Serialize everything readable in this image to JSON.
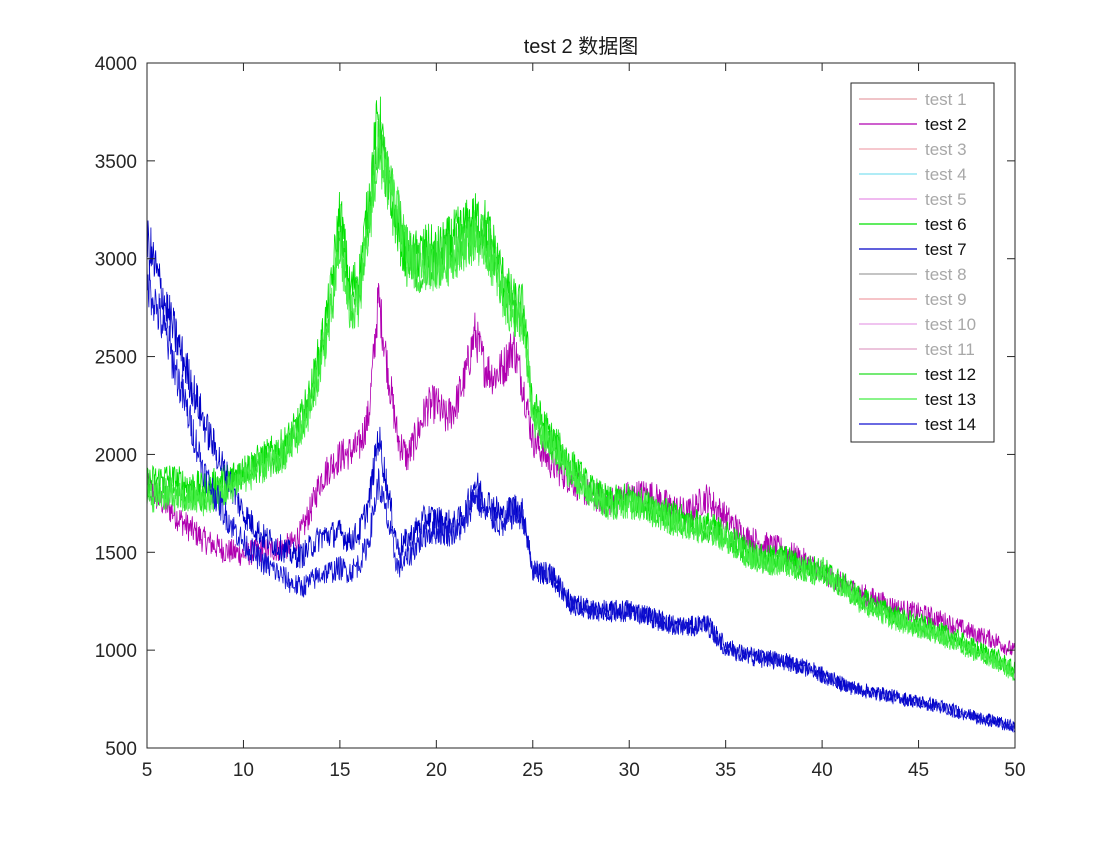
{
  "chart_data": {
    "type": "line",
    "title": "test 2 数据图",
    "xlabel": "",
    "ylabel": "",
    "xlim": [
      5,
      50
    ],
    "ylim": [
      500,
      4000
    ],
    "x_ticks": [
      5,
      10,
      15,
      20,
      25,
      30,
      35,
      40,
      45,
      50
    ],
    "y_ticks": [
      500,
      1000,
      1500,
      2000,
      2500,
      3000,
      3500,
      4000
    ],
    "grid": false,
    "legend_position": "top-right",
    "series": [
      {
        "name": "test 1",
        "color": "#e8a0a8",
        "active": false,
        "x": [],
        "y": []
      },
      {
        "name": "test 2",
        "color": "#b000b0",
        "active": true,
        "x": [
          5,
          6,
          7,
          8,
          9,
          10,
          11,
          12,
          12.5,
          13,
          13.5,
          14,
          14.5,
          15,
          15.5,
          16,
          16.5,
          17,
          17.5,
          18,
          18.5,
          19,
          19.5,
          20,
          20.5,
          21,
          21.5,
          22,
          22.5,
          23,
          23.5,
          24,
          24.5,
          25,
          26,
          27,
          28,
          29,
          30,
          31,
          32,
          33,
          34,
          35,
          36,
          37,
          38,
          39,
          40,
          41,
          42,
          43,
          44,
          45,
          46,
          47,
          48,
          49,
          50
        ],
        "y": [
          1830,
          1740,
          1640,
          1560,
          1510,
          1490,
          1510,
          1520,
          1540,
          1600,
          1720,
          1870,
          1940,
          1990,
          2010,
          2040,
          2200,
          2800,
          2420,
          2080,
          1980,
          2100,
          2240,
          2260,
          2180,
          2250,
          2400,
          2620,
          2450,
          2400,
          2450,
          2560,
          2350,
          2080,
          1950,
          1870,
          1790,
          1760,
          1790,
          1800,
          1740,
          1700,
          1780,
          1680,
          1580,
          1540,
          1510,
          1460,
          1400,
          1340,
          1290,
          1250,
          1210,
          1190,
          1160,
          1120,
          1080,
          1050,
          990
        ]
      },
      {
        "name": "test 3",
        "color": "#f0a8b0",
        "active": false,
        "x": [],
        "y": []
      },
      {
        "name": "test 4",
        "color": "#80e0f0",
        "active": false,
        "x": [],
        "y": []
      },
      {
        "name": "test 5",
        "color": "#e890e8",
        "active": false,
        "x": [],
        "y": []
      },
      {
        "name": "test 6",
        "color": "#00e000",
        "active": true,
        "x": [
          5,
          6,
          7,
          8,
          9,
          10,
          11,
          12,
          12.5,
          13,
          13.5,
          14,
          14.5,
          15,
          15.5,
          16,
          16.5,
          17,
          17.5,
          18,
          18.5,
          19,
          19.5,
          20,
          20.5,
          21,
          21.5,
          22,
          22.5,
          23,
          23.5,
          24,
          24.5,
          25,
          26,
          27,
          28,
          29,
          30,
          31,
          32,
          33,
          34,
          35,
          36,
          37,
          38,
          39,
          40,
          41,
          42,
          43,
          44,
          45,
          46,
          47,
          48,
          49,
          50
        ],
        "y": [
          1860,
          1880,
          1850,
          1830,
          1870,
          1920,
          1980,
          2040,
          2100,
          2180,
          2320,
          2550,
          2800,
          3250,
          2850,
          2900,
          3300,
          3750,
          3350,
          3150,
          2980,
          3020,
          3050,
          3030,
          3070,
          3120,
          3160,
          3200,
          3180,
          3050,
          2880,
          2780,
          2750,
          2250,
          2080,
          1950,
          1820,
          1760,
          1780,
          1740,
          1700,
          1660,
          1640,
          1600,
          1520,
          1470,
          1480,
          1430,
          1420,
          1350,
          1270,
          1220,
          1170,
          1140,
          1100,
          1060,
          1010,
          970,
          900
        ]
      },
      {
        "name": "test 7",
        "color": "#0000c8",
        "active": true,
        "x": [
          5,
          6,
          7,
          8,
          9,
          10,
          11,
          12,
          12.5,
          13,
          13.5,
          14,
          14.5,
          15,
          15.5,
          16,
          16.5,
          17,
          17.5,
          18,
          18.5,
          19,
          19.5,
          20,
          20.5,
          21,
          21.5,
          22,
          22.5,
          23,
          23.5,
          24,
          24.5,
          25,
          26,
          27,
          28,
          29,
          30,
          31,
          32,
          33,
          34,
          35,
          36,
          37,
          38,
          39,
          40,
          41,
          42,
          43,
          44,
          45,
          46,
          47,
          48,
          49,
          50
        ],
        "y": [
          3100,
          2750,
          2450,
          2150,
          1920,
          1700,
          1580,
          1520,
          1490,
          1480,
          1530,
          1580,
          1590,
          1600,
          1560,
          1600,
          1750,
          2100,
          1800,
          1520,
          1560,
          1620,
          1680,
          1670,
          1650,
          1640,
          1700,
          1860,
          1770,
          1730,
          1680,
          1740,
          1700,
          1410,
          1380,
          1240,
          1210,
          1200,
          1210,
          1180,
          1140,
          1120,
          1140,
          1020,
          980,
          960,
          950,
          920,
          880,
          830,
          800,
          780,
          760,
          740,
          720,
          690,
          660,
          640,
          610
        ]
      },
      {
        "name": "test 8",
        "color": "#a0a0a0",
        "active": false,
        "x": [],
        "y": []
      },
      {
        "name": "test 9",
        "color": "#f0a0a8",
        "active": false,
        "x": [],
        "y": []
      },
      {
        "name": "test 10",
        "color": "#e8a0e8",
        "active": false,
        "x": [],
        "y": []
      },
      {
        "name": "test 11",
        "color": "#e0a0c8",
        "active": false,
        "x": [],
        "y": []
      },
      {
        "name": "test 12",
        "color": "#22dd22",
        "active": true,
        "x": [
          5,
          6,
          7,
          8,
          9,
          10,
          11,
          12,
          12.5,
          13,
          13.5,
          14,
          14.5,
          15,
          15.5,
          16,
          16.5,
          17,
          17.5,
          18,
          18.5,
          19,
          19.5,
          20,
          20.5,
          21,
          21.5,
          22,
          22.5,
          23,
          23.5,
          24,
          24.5,
          25,
          26,
          27,
          28,
          29,
          30,
          31,
          32,
          33,
          34,
          35,
          36,
          37,
          38,
          39,
          40,
          41,
          42,
          43,
          44,
          45,
          46,
          47,
          48,
          49,
          50
        ],
        "y": [
          1800,
          1810,
          1790,
          1780,
          1820,
          1900,
          1950,
          2000,
          2060,
          2140,
          2270,
          2480,
          2700,
          3100,
          2750,
          2800,
          3200,
          3600,
          3400,
          3250,
          3050,
          2950,
          2980,
          2990,
          3000,
          3050,
          3100,
          3130,
          3100,
          2980,
          2820,
          2720,
          2700,
          2200,
          2050,
          1920,
          1800,
          1740,
          1760,
          1720,
          1680,
          1640,
          1620,
          1580,
          1500,
          1450,
          1460,
          1410,
          1400,
          1330,
          1250,
          1200,
          1150,
          1120,
          1080,
          1040,
          990,
          950,
          880
        ]
      },
      {
        "name": "test 13",
        "color": "#44ee44",
        "active": true,
        "x": [
          5,
          6,
          7,
          8,
          9,
          10,
          11,
          12,
          12.5,
          13,
          13.5,
          14,
          14.5,
          15,
          15.5,
          16,
          16.5,
          17,
          17.5,
          18,
          18.5,
          19,
          19.5,
          20,
          20.5,
          21,
          21.5,
          22,
          22.5,
          23,
          23.5,
          24,
          24.5,
          25,
          26,
          27,
          28,
          29,
          30,
          31,
          32,
          33,
          34,
          35,
          36,
          37,
          38,
          39,
          40,
          41,
          42,
          43,
          44,
          45,
          46,
          47,
          48,
          49,
          50
        ],
        "y": [
          1780,
          1790,
          1770,
          1760,
          1800,
          1880,
          1930,
          1990,
          2050,
          2120,
          2250,
          2460,
          2680,
          3050,
          2730,
          2780,
          3150,
          3550,
          3380,
          3230,
          3030,
          2940,
          2960,
          2970,
          2980,
          3030,
          3080,
          3110,
          3080,
          2960,
          2800,
          2700,
          2680,
          2180,
          2030,
          1900,
          1790,
          1730,
          1750,
          1710,
          1670,
          1630,
          1610,
          1570,
          1490,
          1440,
          1450,
          1400,
          1390,
          1320,
          1240,
          1190,
          1140,
          1110,
          1070,
          1030,
          980,
          940,
          870
        ]
      },
      {
        "name": "test 14",
        "color": "#1010d0",
        "active": true,
        "x": [
          5,
          6,
          7,
          8,
          9,
          10,
          11,
          12,
          12.5,
          13,
          13.5,
          14,
          14.5,
          15,
          15.5,
          16,
          16.5,
          17,
          17.5,
          18,
          18.5,
          19,
          19.5,
          20,
          20.5,
          21,
          21.5,
          22,
          22.5,
          23,
          23.5,
          24,
          24.5,
          25,
          26,
          27,
          28,
          29,
          30,
          31,
          32,
          33,
          34,
          35,
          36,
          37,
          38,
          39,
          40,
          41,
          42,
          43,
          44,
          45,
          46,
          47,
          48,
          49,
          50
        ],
        "y": [
          2900,
          2600,
          2250,
          1900,
          1700,
          1550,
          1450,
          1380,
          1340,
          1320,
          1350,
          1390,
          1400,
          1420,
          1400,
          1440,
          1560,
          1860,
          1650,
          1420,
          1470,
          1540,
          1600,
          1610,
          1600,
          1600,
          1650,
          1800,
          1700,
          1670,
          1630,
          1700,
          1680,
          1400,
          1380,
          1230,
          1200,
          1190,
          1200,
          1170,
          1130,
          1110,
          1130,
          1010,
          970,
          950,
          940,
          910,
          870,
          820,
          790,
          770,
          750,
          730,
          710,
          680,
          650,
          630,
          600
        ]
      }
    ]
  }
}
